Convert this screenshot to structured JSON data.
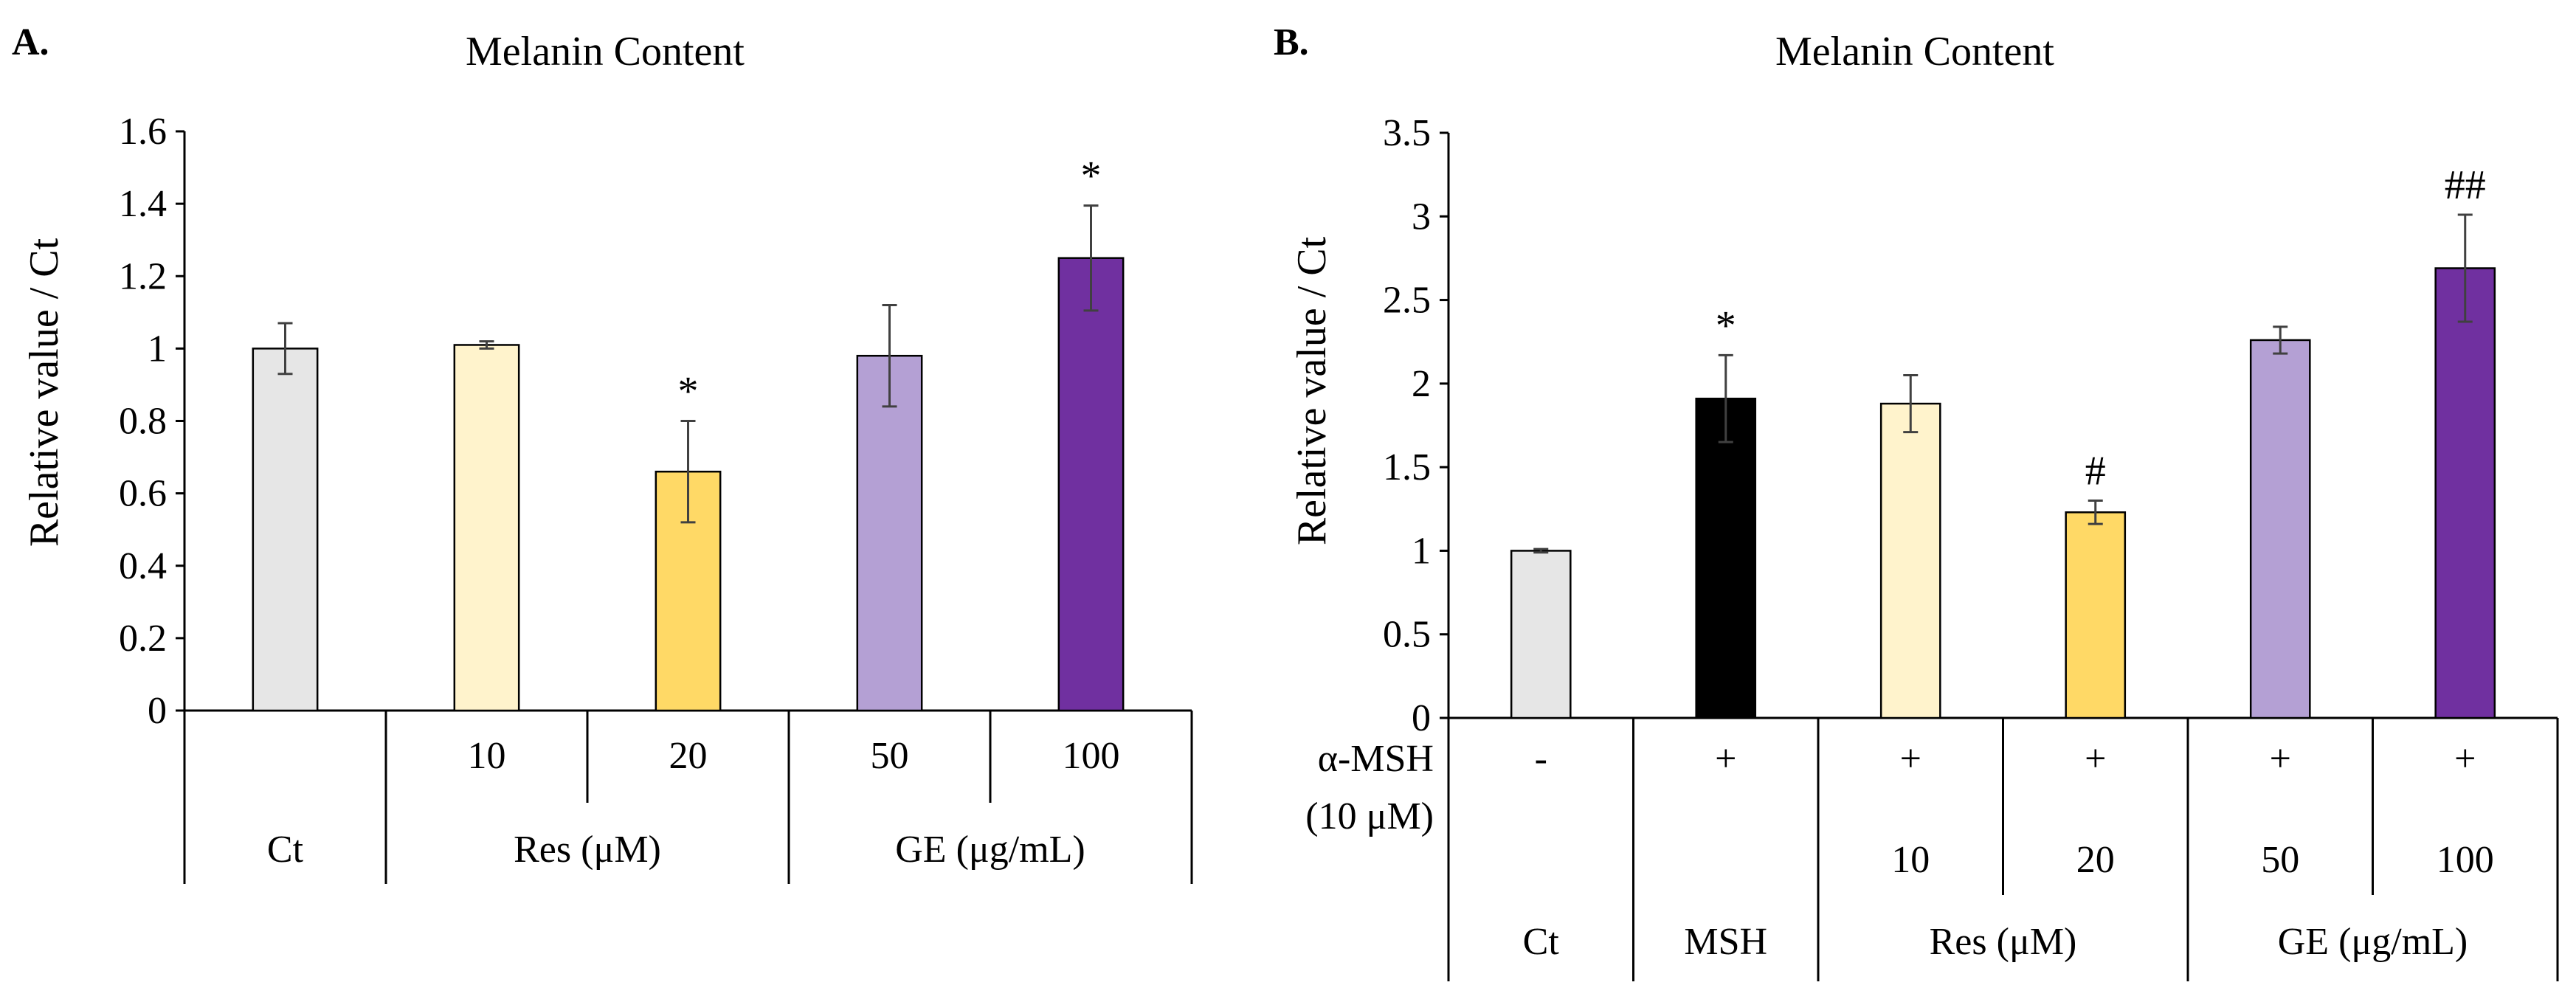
{
  "chart_data": [
    {
      "type": "bar",
      "panel_label": "A.",
      "title": "Melanin Content",
      "ylabel": "Relative value / Ct",
      "ylim": [
        0,
        1.6
      ],
      "yticks": [
        "0",
        "0.2",
        "0.4",
        "0.6",
        "0.8",
        "1",
        "1.2",
        "1.4",
        "1.6"
      ],
      "categories": [
        "",
        "10",
        "20",
        "50",
        "100"
      ],
      "values": [
        1.0,
        1.01,
        0.66,
        0.98,
        1.25
      ],
      "errors": [
        0.07,
        0.01,
        0.14,
        0.14,
        0.145
      ],
      "colors": [
        "#e6e6e6",
        "#fff3cc",
        "#ffd966",
        "#b4a0d4",
        "#7030a0"
      ],
      "annotations": [
        "",
        "",
        "*",
        "",
        "*"
      ],
      "row_labels": [],
      "groups": [
        {
          "label": "Ct",
          "span": [
            0,
            0
          ]
        },
        {
          "label": "Res (μM)",
          "span": [
            1,
            2
          ]
        },
        {
          "label": "GE (μg/mL)",
          "span": [
            3,
            4
          ]
        }
      ]
    },
    {
      "type": "bar",
      "panel_label": "B.",
      "title": "Melanin Content",
      "ylabel": "Relative value / Ct",
      "ylim": [
        0,
        3.5
      ],
      "yticks": [
        "0",
        "0.5",
        "1",
        "1.5",
        "2",
        "2.5",
        "3",
        "3.5"
      ],
      "categories": [
        "",
        "",
        "10",
        "20",
        "50",
        "100"
      ],
      "msh_treatment": [
        "-",
        "+",
        "+",
        "+",
        "+",
        "+"
      ],
      "values": [
        1.0,
        1.91,
        1.88,
        1.23,
        2.26,
        2.69
      ],
      "errors": [
        0.01,
        0.26,
        0.17,
        0.07,
        0.08,
        0.32
      ],
      "colors": [
        "#e6e6e6",
        "#000000",
        "#fff3cc",
        "#ffd966",
        "#b4a0d4",
        "#7030a0"
      ],
      "annotations": [
        "",
        "*",
        "",
        "#",
        "",
        "##"
      ],
      "row_labels": [
        "α-MSH",
        "(10 μM)"
      ],
      "groups": [
        {
          "label": "Ct",
          "span": [
            0,
            0
          ]
        },
        {
          "label": "MSH",
          "span": [
            1,
            1
          ]
        },
        {
          "label": "Res (μM)",
          "span": [
            2,
            3
          ]
        },
        {
          "label": "GE (μg/mL)",
          "span": [
            4,
            5
          ]
        }
      ]
    }
  ]
}
